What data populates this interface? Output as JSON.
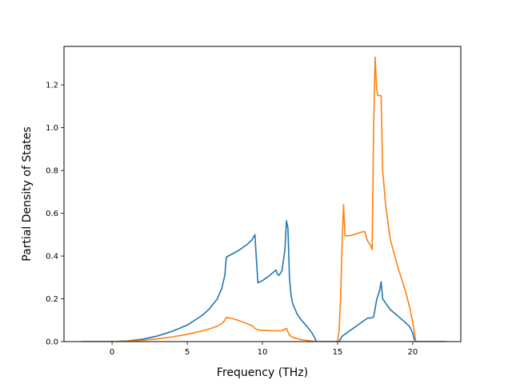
{
  "chart_data": {
    "type": "line",
    "title": "",
    "xlabel": "Frequency (THz)",
    "ylabel": "Partial Density of States",
    "xlim": [
      -3.2,
      23.2
    ],
    "ylim": [
      0,
      1.38
    ],
    "xticks": [
      0,
      5,
      10,
      15,
      20
    ],
    "xtick_labels": [
      "0",
      "5",
      "10",
      "15",
      "20"
    ],
    "yticks": [
      0,
      0.2,
      0.4,
      0.6,
      0.8,
      1.0,
      1.2
    ],
    "ytick_labels": [
      "0.0",
      "0.2",
      "0.4",
      "0.6",
      "0.8",
      "1.0",
      "1.2"
    ],
    "grid": false,
    "series": [
      {
        "color": "#1f77b4",
        "x": [
          -2.0,
          0.0,
          1.0,
          2.0,
          3.0,
          4.0,
          5.0,
          6.0,
          6.5,
          7.0,
          7.3,
          7.5,
          7.6,
          8.0,
          8.5,
          9.0,
          9.3,
          9.5,
          9.7,
          10.0,
          10.5,
          10.9,
          11.0,
          11.1,
          11.3,
          11.5,
          11.6,
          11.7,
          11.8,
          11.9,
          12.0,
          12.3,
          12.6,
          13.0,
          13.3,
          13.5,
          13.6,
          14.5,
          15.1,
          15.3,
          15.5,
          16.0,
          16.5,
          16.8,
          17.0,
          17.2,
          17.4,
          17.6,
          17.8,
          17.9,
          18.0,
          18.5,
          19.0,
          19.5,
          19.8,
          20.0,
          20.1,
          20.2,
          20.5,
          22.2
        ],
        "y": [
          0.0,
          0.0,
          0.003,
          0.011,
          0.026,
          0.048,
          0.077,
          0.123,
          0.155,
          0.2,
          0.25,
          0.31,
          0.395,
          0.41,
          0.43,
          0.455,
          0.475,
          0.5,
          0.275,
          0.285,
          0.31,
          0.335,
          0.315,
          0.31,
          0.33,
          0.43,
          0.565,
          0.53,
          0.3,
          0.22,
          0.18,
          0.13,
          0.1,
          0.068,
          0.04,
          0.015,
          0.0,
          0.0,
          0.0,
          0.025,
          0.035,
          0.06,
          0.085,
          0.1,
          0.11,
          0.11,
          0.115,
          0.195,
          0.24,
          0.28,
          0.2,
          0.15,
          0.12,
          0.09,
          0.07,
          0.04,
          0.01,
          0.0,
          0.0,
          0.0
        ]
      },
      {
        "color": "#ff7f0e",
        "x": [
          -2.0,
          0.0,
          1.0,
          2.0,
          3.0,
          4.0,
          5.0,
          6.0,
          6.5,
          7.0,
          7.3,
          7.5,
          7.6,
          8.0,
          8.5,
          9.0,
          9.3,
          9.5,
          9.7,
          10.0,
          10.5,
          11.0,
          11.3,
          11.6,
          11.8,
          12.0,
          12.5,
          13.0,
          13.6,
          14.5,
          15.0,
          15.1,
          15.2,
          15.3,
          15.4,
          15.5,
          15.8,
          16.1,
          16.5,
          16.8,
          17.0,
          17.2,
          17.3,
          17.4,
          17.5,
          17.6,
          17.7,
          17.9,
          18.0,
          18.2,
          18.5,
          19.0,
          19.5,
          19.8,
          20.0,
          20.1,
          20.2,
          20.5,
          22.2
        ],
        "y": [
          0.0,
          0.0,
          0.002,
          0.006,
          0.013,
          0.022,
          0.034,
          0.05,
          0.06,
          0.072,
          0.085,
          0.1,
          0.113,
          0.108,
          0.097,
          0.083,
          0.075,
          0.062,
          0.055,
          0.053,
          0.051,
          0.05,
          0.051,
          0.062,
          0.03,
          0.02,
          0.01,
          0.005,
          0.0,
          0.0,
          0.0,
          0.05,
          0.2,
          0.45,
          0.64,
          0.495,
          0.495,
          0.5,
          0.51,
          0.515,
          0.47,
          0.45,
          0.43,
          1.0,
          1.33,
          1.18,
          1.15,
          1.15,
          0.8,
          0.64,
          0.48,
          0.35,
          0.24,
          0.16,
          0.09,
          0.05,
          0.0,
          0.0,
          0.0
        ]
      }
    ]
  }
}
